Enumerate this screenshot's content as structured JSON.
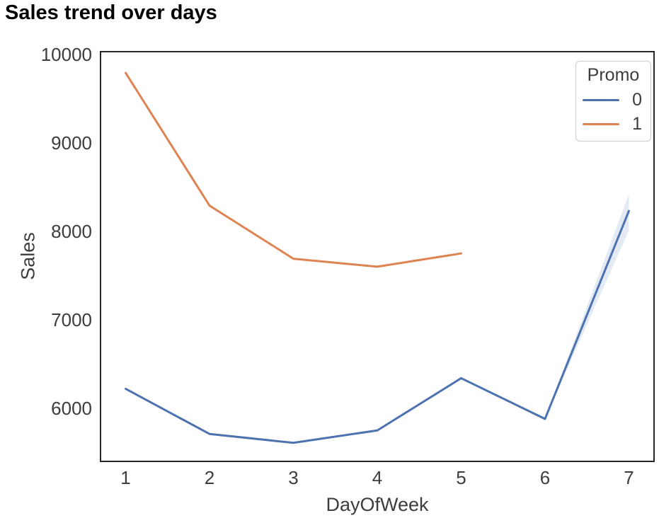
{
  "page": {
    "title": "Sales trend over days"
  },
  "chart_data": {
    "type": "line",
    "title": "Sales trend over days",
    "xlabel": "DayOfWeek",
    "ylabel": "Sales",
    "xlim": [
      0.7,
      7.3
    ],
    "ylim": [
      5400,
      10030
    ],
    "xticks": [
      1,
      2,
      3,
      4,
      5,
      6,
      7
    ],
    "yticks": [
      6000,
      7000,
      8000,
      9000,
      10000
    ],
    "grid": false,
    "legend": {
      "title": "Promo",
      "position": "upper-right"
    },
    "series": [
      {
        "name": "0",
        "color": "#4C72B0",
        "x": [
          1,
          2,
          3,
          4,
          5,
          6,
          7
        ],
        "values": [
          6220,
          5710,
          5610,
          5750,
          6340,
          5880,
          8230
        ]
      },
      {
        "name": "1",
        "color": "#DD8452",
        "x": [
          1,
          2,
          3,
          4,
          5
        ],
        "values": [
          9790,
          8290,
          7690,
          7600,
          7750
        ]
      }
    ],
    "ci_band": {
      "series": "0",
      "color": "#4C72B0",
      "opacity": 0.15,
      "x": [
        6,
        7
      ],
      "lower": [
        5880,
        8010
      ],
      "upper": [
        5880,
        8420
      ]
    },
    "style": {
      "spine_color": "#262626",
      "line_width": 3,
      "axis_text_color": "#3d3d3d"
    }
  }
}
